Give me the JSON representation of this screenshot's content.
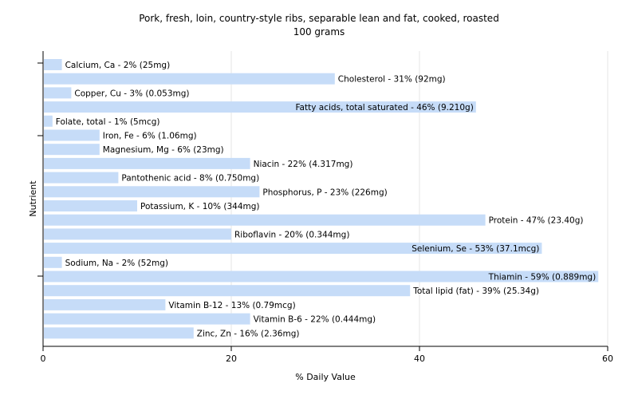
{
  "chart_data": {
    "type": "bar",
    "orientation": "horizontal",
    "title": "Pork, fresh, loin, country-style ribs, separable lean and fat, cooked, roasted",
    "subtitle": "100 grams",
    "xlabel": "% Daily Value",
    "ylabel": "Nutrient",
    "xlim": [
      0,
      60
    ],
    "xticks": [
      0,
      20,
      40,
      60
    ],
    "grid": true,
    "bar_color": "#c6dcf8",
    "categories": [
      "Calcium, Ca",
      "Cholesterol",
      "Copper, Cu",
      "Fatty acids, total saturated",
      "Folate, total",
      "Iron, Fe",
      "Magnesium, Mg",
      "Niacin",
      "Pantothenic acid",
      "Phosphorus, P",
      "Potassium, K",
      "Protein",
      "Riboflavin",
      "Selenium, Se",
      "Sodium, Na",
      "Thiamin",
      "Total lipid (fat)",
      "Vitamin B-12",
      "Vitamin B-6",
      "Zinc, Zn"
    ],
    "values": [
      2,
      31,
      3,
      46,
      1,
      6,
      6,
      22,
      8,
      23,
      10,
      47,
      20,
      53,
      2,
      59,
      39,
      13,
      22,
      16
    ],
    "labels": [
      "Calcium, Ca - 2% (25mg)",
      "Cholesterol - 31% (92mg)",
      "Copper, Cu - 3% (0.053mg)",
      "Fatty acids, total saturated - 46% (9.210g)",
      "Folate, total - 1% (5mcg)",
      "Iron, Fe - 6% (1.06mg)",
      "Magnesium, Mg - 6% (23mg)",
      "Niacin - 22% (4.317mg)",
      "Pantothenic acid - 8% (0.750mg)",
      "Phosphorus, P - 23% (226mg)",
      "Potassium, K - 10% (344mg)",
      "Protein - 47% (23.40g)",
      "Riboflavin - 20% (0.344mg)",
      "Selenium, Se - 53% (37.1mcg)",
      "Sodium, Na - 2% (52mg)",
      "Thiamin - 59% (0.889mg)",
      "Total lipid (fat) - 39% (25.34g)",
      "Vitamin B-12 - 13% (0.79mcg)",
      "Vitamin B-6 - 22% (0.444mg)",
      "Zinc, Zn - 16% (2.36mg)"
    ]
  }
}
